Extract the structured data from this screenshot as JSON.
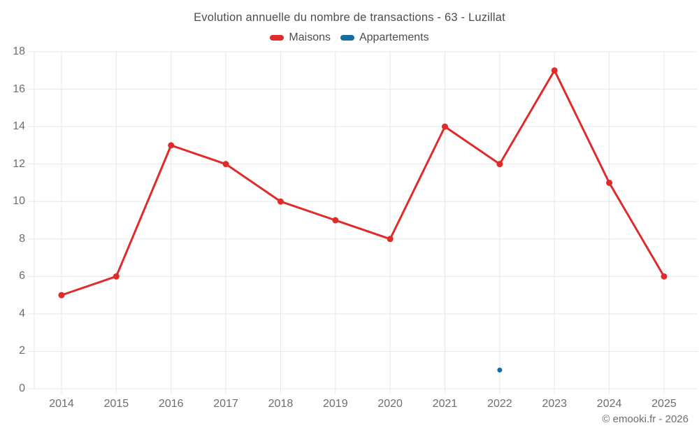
{
  "chart_data": {
    "type": "line",
    "title": "Evolution annuelle du nombre de transactions - 63 - Luzillat",
    "categories": [
      "2014",
      "2015",
      "2016",
      "2017",
      "2018",
      "2019",
      "2020",
      "2021",
      "2022",
      "2023",
      "2024",
      "2025"
    ],
    "series": [
      {
        "name": "Maisons",
        "color": "#e02b2b",
        "point_radius": 4.5,
        "line_width": 3,
        "values": [
          5,
          6,
          13,
          12,
          10,
          9,
          8,
          14,
          12,
          17,
          11,
          6
        ]
      },
      {
        "name": "Appartements",
        "color": "#176da3",
        "point_radius": 3.5,
        "line_width": 3,
        "values": [
          null,
          null,
          null,
          null,
          null,
          null,
          null,
          null,
          1,
          null,
          null,
          null
        ]
      }
    ],
    "ylim": [
      0,
      18
    ],
    "ytick_step": 2,
    "yticks": [
      0,
      2,
      4,
      6,
      8,
      10,
      12,
      14,
      16,
      18
    ],
    "grid": true,
    "grid_color": "#e7e7e7",
    "tick_label_color": "#6e6e6e",
    "title_color": "#4d4d4d",
    "legend_position": "top"
  },
  "footer": {
    "copyright": "© emooki.fr - 2026"
  }
}
